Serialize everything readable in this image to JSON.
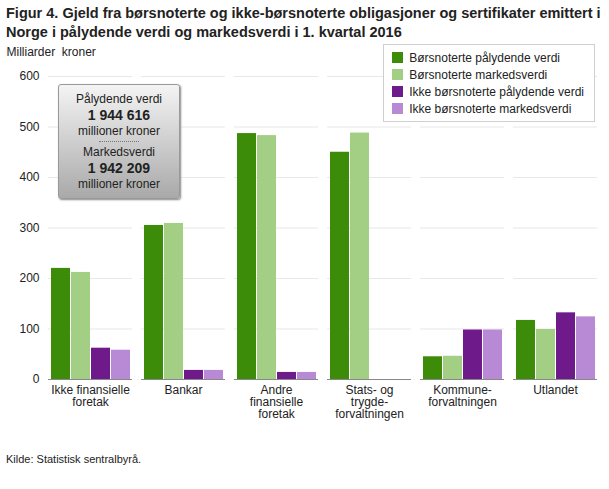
{
  "chart_data": {
    "type": "bar",
    "title": "Figur 4. Gjeld fra  børsnoterte og ikke-børsnoterte obligasjoner og sertifikater emittert i Norge i pålydende verdi og markedsverdi i 1. kvartal 2016",
    "y_label": "Milliarder  kroner",
    "caption": "Kilde: Statistisk sentralbyrå.",
    "annotations": [
      "Pålydende verdi",
      "1 944 616",
      "millioner  kroner",
      "Markedsverdi",
      "1 942 209",
      "millioner  kroner"
    ],
    "categories": [
      "Ikke finansielle\nforetak",
      "Bankar",
      "Andre\nfinansielle\nforetak",
      "Stats- og\ntrygde-\nforvaltningen",
      "Kommune-\nforvaltningen",
      "Utlandet"
    ],
    "series": [
      {
        "name": "Børsnoterte pålydende verdi",
        "color": "#3c8c0a",
        "values": [
          220,
          305,
          487,
          450,
          45,
          117
        ]
      },
      {
        "name": "Børsnoterte markedsverdi",
        "color": "#a3cf84",
        "values": [
          212,
          309,
          483,
          488,
          46,
          99
        ]
      },
      {
        "name": "Ikke børsnoterte pålydende verdi",
        "color": "#6e1a8a",
        "values": [
          62,
          18,
          14,
          null,
          98,
          132
        ]
      },
      {
        "name": "Ikke børsnoterte markedsverdi",
        "color": "#b889d4",
        "values": [
          58,
          18,
          14,
          null,
          98,
          124
        ]
      }
    ],
    "ylim": [
      0,
      600
    ],
    "yticks": [
      0,
      100,
      200,
      300,
      400,
      500,
      600
    ],
    "grid": true,
    "legend": "top-right"
  }
}
